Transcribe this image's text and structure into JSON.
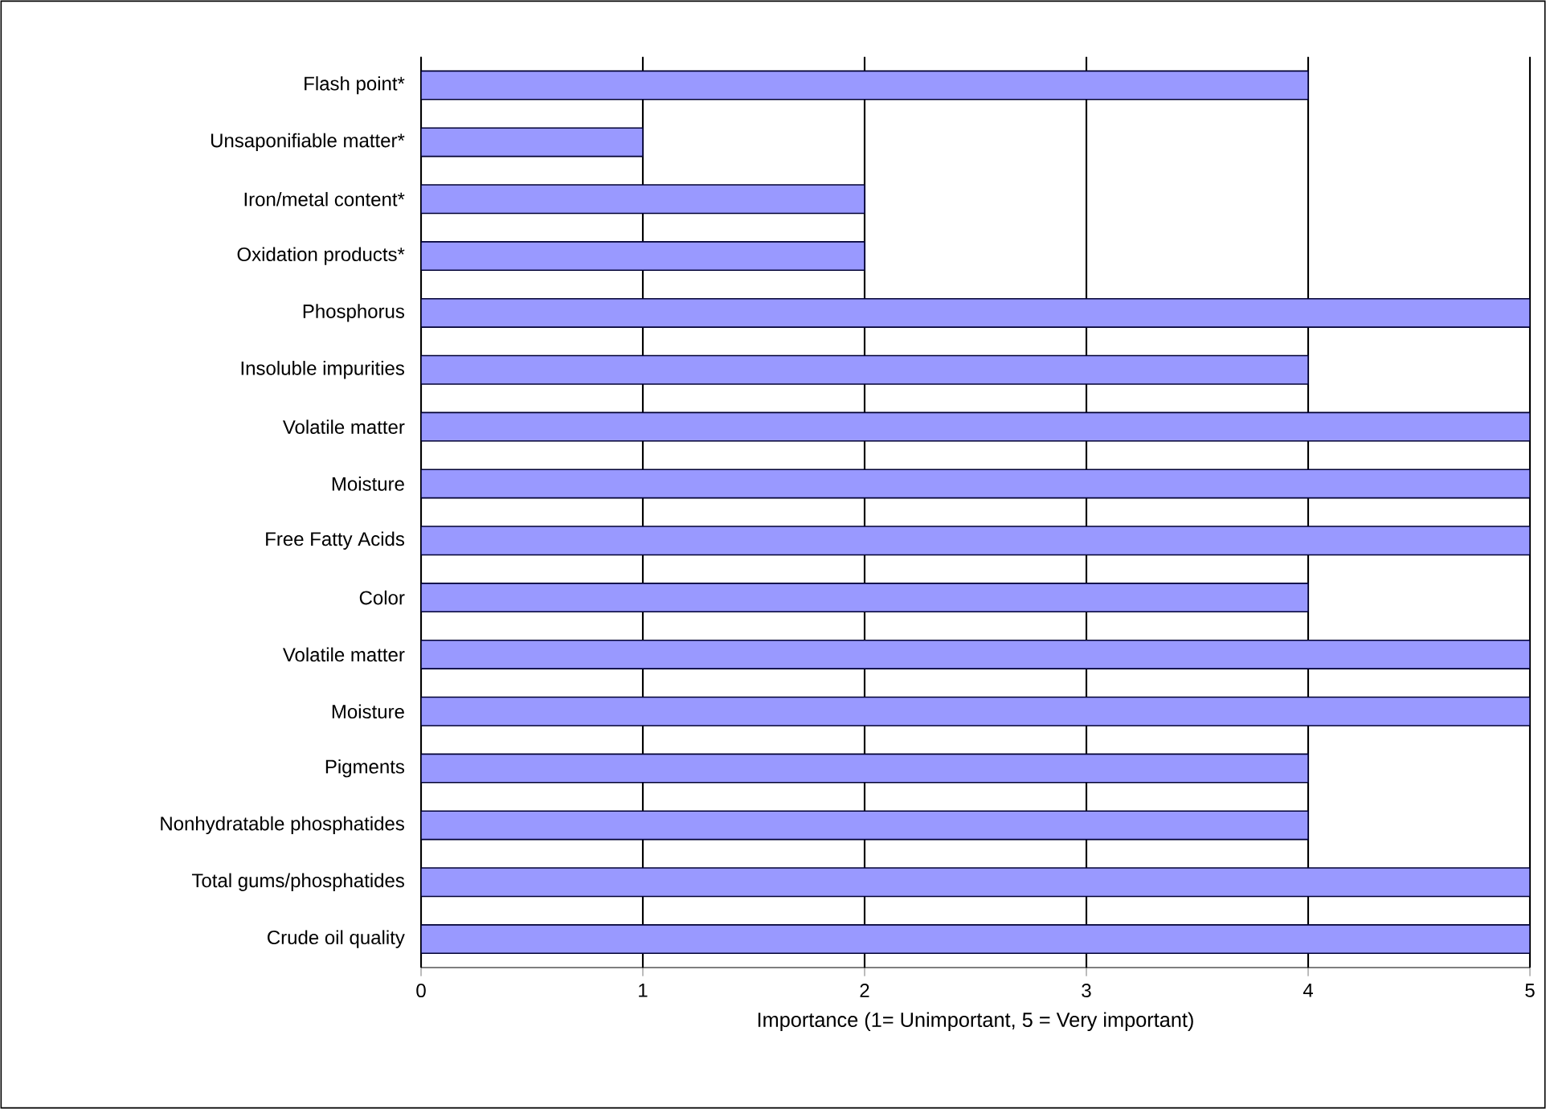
{
  "chart_data": {
    "type": "bar",
    "orientation": "horizontal",
    "xlabel": "Importance (1= Unimportant, 5 = Very important)",
    "categories": [
      "Flash point*",
      "Unsaponifiable matter*",
      "Iron/metal content*",
      "Oxidation products*",
      "Phosphorus",
      "Insoluble impurities",
      "Volatile matter",
      "Moisture",
      "Free Fatty Acids",
      "Color",
      "Volatile matter",
      "Moisture",
      "Pigments",
      "Nonhydratable phosphatides",
      "Total gums/phosphatides",
      "Crude oil quality"
    ],
    "values": [
      4,
      1,
      2,
      2,
      5,
      4,
      5,
      5,
      5,
      4,
      5,
      5,
      4,
      4,
      5,
      5
    ],
    "color": "#9999ff",
    "xlim": [
      0,
      5
    ],
    "xticks": [
      0,
      1,
      2,
      3,
      4,
      5
    ],
    "grid": "x"
  }
}
